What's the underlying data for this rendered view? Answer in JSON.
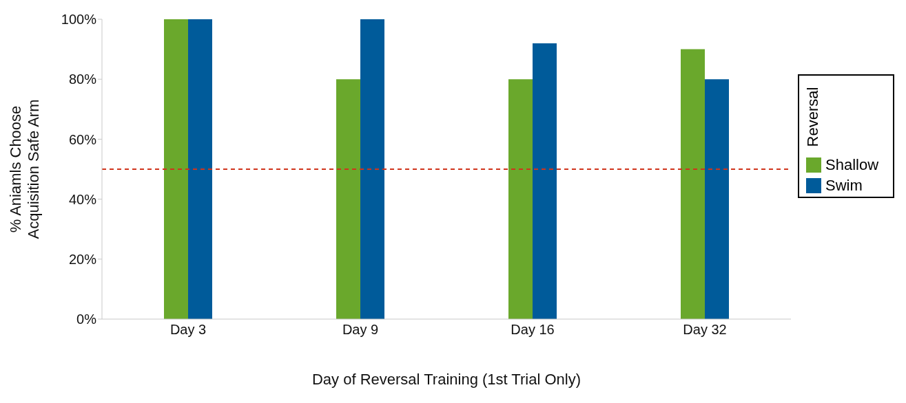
{
  "chart_data": {
    "type": "bar",
    "xlabel": "Day of Reversal Training (1st Trial Only)",
    "ylabel": "% Aniamls Choose\nAcquisition Safe Arm",
    "legend_title": "Reversal",
    "legend": "right",
    "grid": false,
    "categories": [
      "Day 3",
      "Day 9",
      "Day 16",
      "Day 32"
    ],
    "ylim": [
      0,
      100
    ],
    "yticks": [
      {
        "value": 0,
        "label": "0%"
      },
      {
        "value": 20,
        "label": "20%"
      },
      {
        "value": 40,
        "label": "40%"
      },
      {
        "value": 60,
        "label": "60%"
      },
      {
        "value": 80,
        "label": "80%"
      },
      {
        "value": 100,
        "label": "100%"
      }
    ],
    "series": [
      {
        "name": "Shallow",
        "color": "#6aa82c",
        "values": [
          100,
          80,
          80,
          90
        ]
      },
      {
        "name": "Swim",
        "color": "#005b9a",
        "values": [
          100,
          100,
          92,
          80
        ]
      }
    ],
    "ref_lines": [
      {
        "axis": "y",
        "value": 50,
        "color": "#d0341c",
        "line_style": "dashed"
      }
    ]
  }
}
